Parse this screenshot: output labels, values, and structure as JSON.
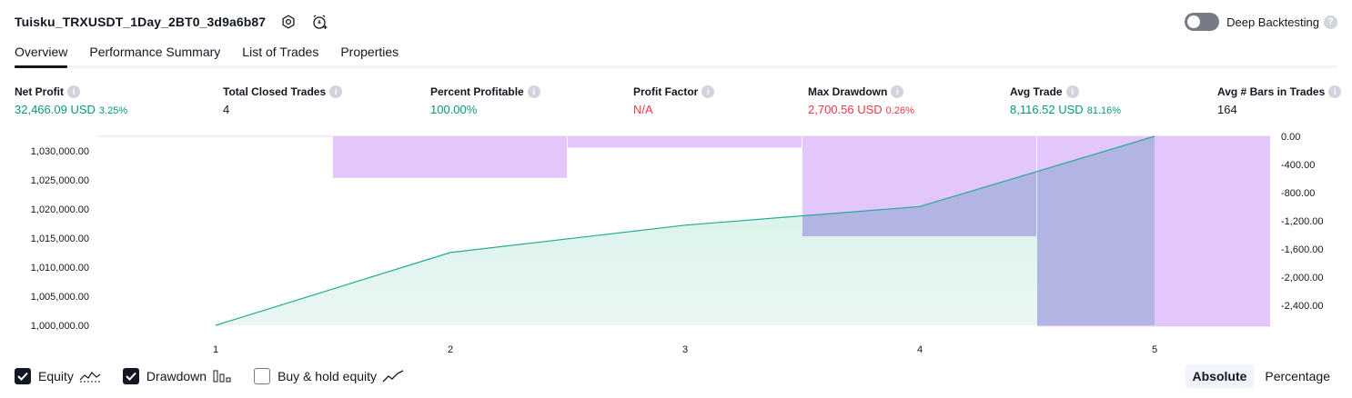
{
  "header": {
    "strategy_title": "Tuisku_TRXUSDT_1Day_2BT0_3d9a6b87",
    "deep_backtesting_label": "Deep Backtesting",
    "help_glyph": "?"
  },
  "tabs": [
    {
      "label": "Overview",
      "active": true
    },
    {
      "label": "Performance Summary",
      "active": false
    },
    {
      "label": "List of Trades",
      "active": false
    },
    {
      "label": "Properties",
      "active": false
    }
  ],
  "metrics": [
    {
      "label": "Net Profit",
      "value": "32,466.09 USD",
      "pct": "3.25%",
      "color": "green"
    },
    {
      "label": "Total Closed Trades",
      "value": "4",
      "pct": "",
      "color": "dark"
    },
    {
      "label": "Percent Profitable",
      "value": "100.00%",
      "pct": "",
      "color": "green"
    },
    {
      "label": "Profit Factor",
      "value": "N/A",
      "pct": "",
      "color": "red"
    },
    {
      "label": "Max Drawdown",
      "value": "2,700.56 USD",
      "pct": "0.26%",
      "color": "red"
    },
    {
      "label": "Avg Trade",
      "value": "8,116.52 USD",
      "pct": "81.16%",
      "color": "green"
    },
    {
      "label": "Avg # Bars in Trades",
      "value": "164",
      "pct": "",
      "color": "dark"
    }
  ],
  "info_glyph": "i",
  "chart_data": {
    "type": "area",
    "x_ticks": [
      "1",
      "2",
      "3",
      "4",
      "5"
    ],
    "left_axis": {
      "ticks": [
        "1,000,000.00",
        "1,005,000.00",
        "1,010,000.00",
        "1,015,000.00",
        "1,020,000.00",
        "1,025,000.00",
        "1,030,000.00"
      ],
      "values": [
        1000000,
        1005000,
        1010000,
        1015000,
        1020000,
        1025000,
        1030000
      ]
    },
    "right_axis": {
      "ticks": [
        "0.00",
        "-400.00",
        "-800.00",
        "-1,200.00",
        "-1,600.00",
        "-2,000.00",
        "-2,400.00"
      ],
      "values": [
        0,
        -400,
        -800,
        -1200,
        -1600,
        -2000,
        -2400
      ]
    },
    "series": [
      {
        "name": "Equity",
        "type": "area",
        "x": [
          1,
          2,
          3,
          4,
          5
        ],
        "values": [
          1000000,
          1012500,
          1017200,
          1020400,
          1032466.09
        ]
      },
      {
        "name": "Drawdown",
        "type": "bar",
        "x": [
          1,
          2,
          3,
          4,
          5
        ],
        "values": [
          0,
          -590,
          -160,
          -1420,
          -2700.56
        ]
      }
    ],
    "colors": {
      "equity_line": "#22ab94",
      "equity_fill": "#d1f0e7",
      "drawdown": "#e1c3fb",
      "overlap": "#b2b5e3"
    }
  },
  "legend": [
    {
      "label": "Equity",
      "checked": true,
      "icon": "equity-line-icon"
    },
    {
      "label": "Drawdown",
      "checked": true,
      "icon": "drawdown-bars-icon"
    },
    {
      "label": "Buy & hold equity",
      "checked": false,
      "icon": "buy-hold-line-icon"
    }
  ],
  "view_mode": {
    "options": [
      "Absolute",
      "Percentage"
    ],
    "selected": "Absolute"
  }
}
